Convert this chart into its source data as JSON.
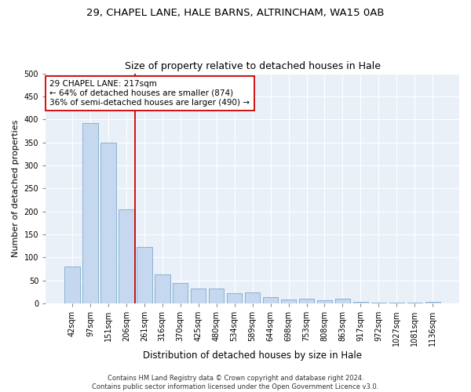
{
  "title1": "29, CHAPEL LANE, HALE BARNS, ALTRINCHAM, WA15 0AB",
  "title2": "Size of property relative to detached houses in Hale",
  "xlabel": "Distribution of detached houses by size in Hale",
  "ylabel": "Number of detached properties",
  "categories": [
    "42sqm",
    "97sqm",
    "151sqm",
    "206sqm",
    "261sqm",
    "316sqm",
    "370sqm",
    "425sqm",
    "480sqm",
    "534sqm",
    "589sqm",
    "644sqm",
    "698sqm",
    "753sqm",
    "808sqm",
    "863sqm",
    "917sqm",
    "972sqm",
    "1027sqm",
    "1081sqm",
    "1136sqm"
  ],
  "values": [
    80,
    392,
    350,
    205,
    122,
    63,
    45,
    33,
    33,
    22,
    24,
    14,
    9,
    10,
    6,
    10,
    3,
    2,
    2,
    1,
    4
  ],
  "bar_color": "#c5d8ef",
  "bar_edge_color": "#7aabcf",
  "vline_color": "#cc0000",
  "annotation_line1": "29 CHAPEL LANE: 217sqm",
  "annotation_line2": "← 64% of detached houses are smaller (874)",
  "annotation_line3": "36% of semi-detached houses are larger (490) →",
  "annotation_box_color": "#ffffff",
  "annotation_box_edge_color": "#cc0000",
  "ylim": [
    0,
    500
  ],
  "yticks": [
    0,
    50,
    100,
    150,
    200,
    250,
    300,
    350,
    400,
    450,
    500
  ],
  "background_color": "#eaf0f8",
  "footer_text": "Contains HM Land Registry data © Crown copyright and database right 2024.\nContains public sector information licensed under the Open Government Licence v3.0.",
  "title1_fontsize": 9.5,
  "title2_fontsize": 9,
  "xlabel_fontsize": 8.5,
  "ylabel_fontsize": 8,
  "tick_fontsize": 7,
  "annotation_fontsize": 7.5,
  "footer_fontsize": 6
}
